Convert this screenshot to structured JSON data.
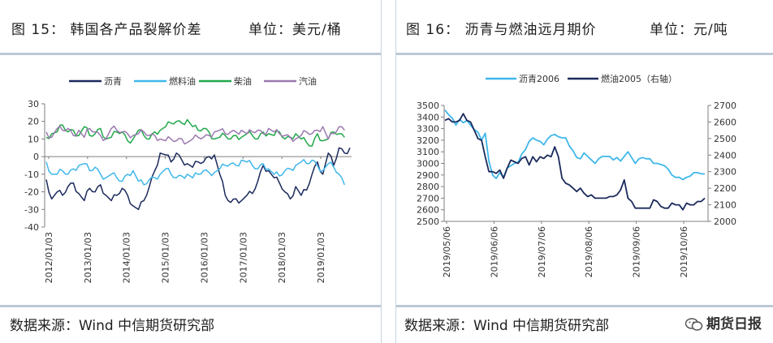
{
  "left_panel": {
    "title": "图  15：  韩国各产品裂解价差",
    "unit": "单位：美元/桶",
    "source": "数据来源：Wind    中信期货研究部"
  },
  "right_panel": {
    "title": "图  16：  沥青与燃油远月期价",
    "unit": "单位：元/吨",
    "source": "数据来源：Wind    中信期货研究部"
  },
  "watermark": "期货日报",
  "colors": {
    "navy": "#1b2a5c",
    "cyan": "#3fb7ea",
    "green": "#22a84a",
    "purple": "#9b79b0",
    "axis": "#7f7f7f",
    "border": "#bcc8d6"
  },
  "chart_data": [
    {
      "type": "line",
      "title": "",
      "xlabel": "",
      "ylabel": "",
      "ylim": [
        -40,
        30
      ],
      "yticks": [
        30,
        20,
        10,
        0,
        -10,
        -20,
        -30,
        -40
      ],
      "xticks": [
        "2012/01/03",
        "2013/01/03",
        "2014/01/03",
        "2015/01/03",
        "2016/01/03",
        "2017/01/03",
        "2018/01/03",
        "2019/01/03"
      ],
      "legend": "top",
      "series": [
        {
          "name": "沥青",
          "color": "#1b2a5c",
          "values": [
            -13,
            -24,
            -20,
            -22,
            -17,
            -15,
            -21,
            -25,
            -18,
            -20,
            -16,
            -22,
            -25,
            -22,
            -18,
            -22,
            -28,
            -30,
            -25,
            -17,
            -8,
            2,
            1,
            -3,
            2,
            -2,
            -4,
            -6,
            -3,
            -3,
            0,
            1,
            -10,
            -22,
            -26,
            -24,
            -25,
            -22,
            -21,
            -14,
            -5,
            -8,
            -12,
            -15,
            -20,
            -24,
            -17,
            -22,
            -19,
            -10,
            -3,
            -10,
            2,
            -5,
            5,
            2,
            5
          ]
        },
        {
          "name": "燃料油",
          "color": "#3fb7ea",
          "values": [
            -3,
            -10,
            -10,
            -8,
            -10,
            -7,
            -5,
            -4,
            -8,
            -6,
            -10,
            -12,
            -10,
            -12,
            -14,
            -10,
            -8,
            -14,
            -16,
            -13,
            -12,
            -10,
            -7,
            -10,
            -12,
            -11,
            -10,
            -12,
            -10,
            -8,
            -9,
            -9,
            -7,
            -5,
            -4,
            -5,
            -2,
            -3,
            -5,
            -7,
            -4,
            -7,
            -10,
            -11,
            -8,
            -7,
            -5,
            -3,
            -4,
            -2,
            -5,
            -8,
            -4,
            -6,
            -10,
            -16
          ]
        },
        {
          "name": "柴油",
          "color": "#22a84a",
          "values": [
            11,
            13,
            14,
            18,
            14,
            15,
            12,
            17,
            12,
            13,
            16,
            10,
            11,
            14,
            14,
            9,
            10,
            15,
            12,
            10,
            14,
            15,
            17,
            19,
            20,
            19,
            21,
            17,
            15,
            16,
            14,
            10,
            11,
            12,
            10,
            12,
            11,
            13,
            12,
            10,
            14,
            13,
            12,
            14,
            10,
            11,
            13,
            10,
            8,
            6,
            13,
            9,
            10,
            14,
            13,
            11
          ]
        },
        {
          "name": "汽油",
          "color": "#9b79b0",
          "values": [
            14,
            11,
            16,
            15,
            16,
            12,
            15,
            11,
            16,
            14,
            12,
            10,
            16,
            15,
            14,
            13,
            12,
            13,
            14,
            12,
            12,
            10,
            9,
            10,
            9,
            10,
            8,
            10,
            11,
            11,
            12,
            14,
            15,
            13,
            14,
            14,
            15,
            13,
            14,
            15,
            13,
            16,
            14,
            13,
            12,
            11,
            10,
            12,
            14,
            13,
            15,
            17,
            10,
            13,
            17,
            15
          ]
        }
      ]
    },
    {
      "type": "line",
      "title": "",
      "xlabel": "",
      "ylabel": "",
      "ylim": [
        2500,
        3500
      ],
      "y2lim": [
        2000,
        2700
      ],
      "yticks": [
        3500,
        3400,
        3300,
        3200,
        3100,
        3000,
        2900,
        2800,
        2700,
        2600,
        2500
      ],
      "y2ticks": [
        2700,
        2600,
        2500,
        2400,
        2300,
        2200,
        2100,
        2000
      ],
      "xticks": [
        "2019/05/06",
        "2019/06/06",
        "2019/07/06",
        "2019/08/06",
        "2019/09/06",
        "2019/10/06"
      ],
      "legend": "top",
      "series": [
        {
          "name": "沥青2006",
          "axis": "left",
          "color": "#3fb7ea",
          "values": [
            3460,
            3420,
            3390,
            3330,
            3380,
            3350,
            3370,
            3330,
            3290,
            3270,
            3200,
            3260,
            3020,
            2900,
            2870,
            2920,
            2880,
            2960,
            2980,
            3000,
            3010,
            3080,
            3120,
            3190,
            3220,
            3200,
            3190,
            3160,
            3210,
            3240,
            3250,
            3230,
            3220,
            3220,
            3150,
            3110,
            3050,
            3040,
            3090,
            3060,
            3030,
            3000,
            3040,
            3060,
            3060,
            3060,
            3030,
            3050,
            3020,
            3060,
            3100,
            3050,
            3000,
            3040,
            3050,
            3040,
            3040,
            3000,
            3000,
            2990,
            2980,
            2950,
            2900,
            2880,
            2880,
            2860,
            2880,
            2890,
            2920,
            2920,
            2910,
            2910
          ]
        },
        {
          "name": "燃油2005（右轴）",
          "axis": "right",
          "color": "#1b2a5c",
          "values": [
            2610,
            2620,
            2600,
            2600,
            2610,
            2650,
            2610,
            2600,
            2550,
            2500,
            2490,
            2390,
            2300,
            2300,
            2290,
            2310,
            2260,
            2320,
            2370,
            2360,
            2350,
            2380,
            2390,
            2340,
            2390,
            2360,
            2390,
            2380,
            2400,
            2390,
            2450,
            2390,
            2260,
            2230,
            2220,
            2200,
            2180,
            2200,
            2170,
            2150,
            2160,
            2140,
            2140,
            2140,
            2140,
            2150,
            2150,
            2160,
            2190,
            2250,
            2140,
            2120,
            2080,
            2080,
            2080,
            2080,
            2080,
            2130,
            2120,
            2090,
            2080,
            2080,
            2110,
            2100,
            2100,
            2070,
            2110,
            2100,
            2100,
            2120,
            2120,
            2140
          ]
        }
      ]
    }
  ]
}
